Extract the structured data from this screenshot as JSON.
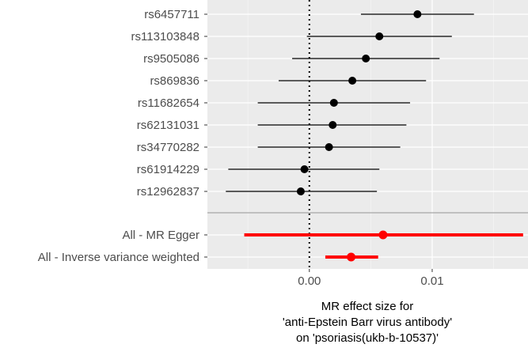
{
  "chart_data": {
    "type": "forest",
    "title": "",
    "xlabel": [
      "MR effect size for",
      "'anti-Epstein Barr virus antibody'",
      "on 'psoriasis(ukb-b-10537)'"
    ],
    "ylabel": "",
    "xlim": [
      -0.0083,
      0.0178
    ],
    "x_ticks": [
      0.0,
      0.01
    ],
    "x_tick_labels": [
      "0.00",
      "0.01"
    ],
    "grid": true,
    "reference_line": 0,
    "snps": [
      {
        "label": "rs6457711",
        "estimate": 0.0088,
        "lower": 0.0042,
        "upper": 0.0134
      },
      {
        "label": "rs113103848",
        "estimate": 0.0057,
        "lower": -0.0002,
        "upper": 0.0116
      },
      {
        "label": "rs9505086",
        "estimate": 0.0046,
        "lower": -0.0014,
        "upper": 0.0106
      },
      {
        "label": "rs869836",
        "estimate": 0.0035,
        "lower": -0.0025,
        "upper": 0.0095
      },
      {
        "label": "rs11682654",
        "estimate": 0.002,
        "lower": -0.0042,
        "upper": 0.0082
      },
      {
        "label": "rs62131031",
        "estimate": 0.0019,
        "lower": -0.0042,
        "upper": 0.0079
      },
      {
        "label": "rs34770282",
        "estimate": 0.0016,
        "lower": -0.0042,
        "upper": 0.0074
      },
      {
        "label": "rs61914229",
        "estimate": -0.0004,
        "lower": -0.0066,
        "upper": 0.0057
      },
      {
        "label": "rs12962837",
        "estimate": -0.0007,
        "lower": -0.0068,
        "upper": 0.0055
      }
    ],
    "summary": [
      {
        "label": "All - MR Egger",
        "estimate": 0.006,
        "lower": -0.0053,
        "upper": 0.0174
      },
      {
        "label": "All - Inverse variance weighted",
        "estimate": 0.0034,
        "lower": 0.0013,
        "upper": 0.0056
      }
    ],
    "colors": {
      "panel": "#ebebeb",
      "grid_major": "#ffffff",
      "grid_minor": "#f4f4f4",
      "snp": "#000000",
      "summary": "#ff0000",
      "separator": "#a6a6a6"
    }
  }
}
